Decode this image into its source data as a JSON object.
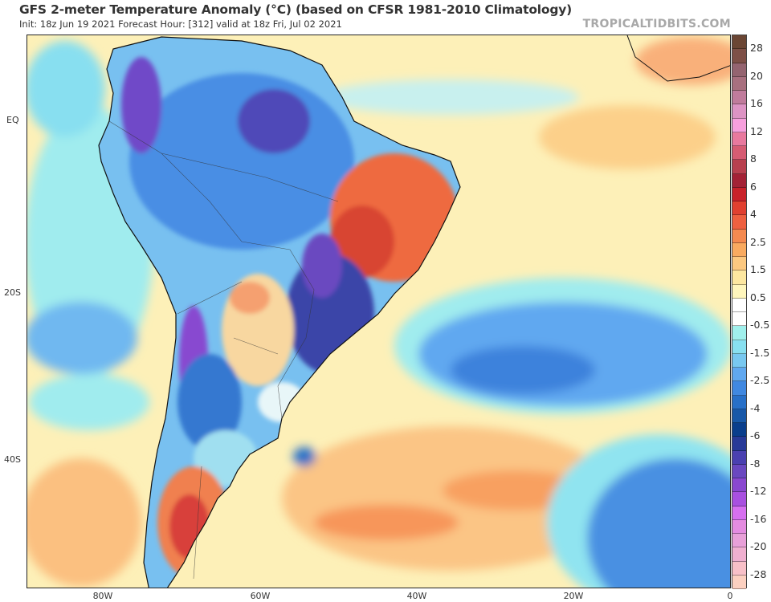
{
  "header": {
    "title": "GFS 2-meter Temperature Anomaly (°C) (based on CFSR 1981-2010 Climatology)",
    "subtitle": "Init: 18z Jun 19 2021   Forecast Hour: [312]   valid at 18z Fri, Jul 02 2021",
    "brand": "TROPICALTIDBITS.COM"
  },
  "map": {
    "lat_labels": [
      "EQ",
      "20S",
      "40S"
    ],
    "lon_labels": [
      "80W",
      "60W",
      "40W",
      "20W",
      "0"
    ]
  },
  "colorbar": {
    "labels": [
      "28",
      "20",
      "16",
      "12",
      "8",
      "6",
      "4",
      "2.5",
      "1.5",
      "0.5",
      "-0.5",
      "-1.5",
      "-2.5",
      "-4",
      "-6",
      "-8",
      "-12",
      "-16",
      "-20",
      "-28"
    ],
    "colors": [
      "#6b4634",
      "#7e5047",
      "#946470",
      "#a8707f",
      "#c07c9c",
      "#dd94c4",
      "#f7a0dd",
      "#e8799e",
      "#d65c73",
      "#b8404f",
      "#a32236",
      "#c8222a",
      "#e04030",
      "#ee6040",
      "#f58a50",
      "#f9aa60",
      "#fcc880",
      "#fde7a0",
      "#fff6bc",
      "#ffffff",
      "#ffffff",
      "#a0f0ec",
      "#88e0f0",
      "#78c8f0",
      "#60a8f0",
      "#4088e0",
      "#2870c8",
      "#1858a8",
      "#0a3e8c",
      "#283a98",
      "#4a40b0",
      "#6a48c0",
      "#8a48d0",
      "#a850e0",
      "#d670f0",
      "#e48ce0",
      "#e8a0d8",
      "#f0b0d0",
      "#f8c0c8",
      "#fcd0c0"
    ]
  }
}
